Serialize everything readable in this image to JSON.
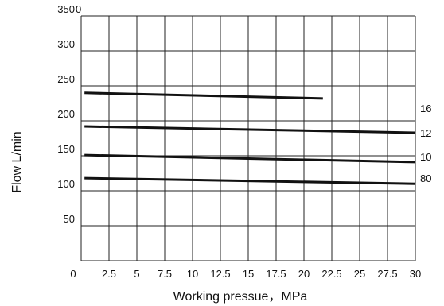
{
  "chart_data": {
    "type": "line",
    "xlabel": "Working pressue，MPa",
    "ylabel": "Flow L/min",
    "xlim": [
      0,
      30
    ],
    "ylim": [
      0,
      350
    ],
    "x_ticks": [
      "0",
      "2.5",
      "5",
      "7.5",
      "10",
      "12.5",
      "15",
      "17.5",
      "20",
      "22.5",
      "25",
      "27.5",
      "30"
    ],
    "y_ticks": [
      "50",
      "100",
      "150",
      "200",
      "250",
      "300",
      "350"
    ],
    "y_top_extra_label": "0",
    "grid": true,
    "series": [
      {
        "name": "16",
        "x": [
          0.3,
          21.7
        ],
        "y": [
          240,
          232
        ]
      },
      {
        "name": "12",
        "x": [
          0.3,
          30
        ],
        "y": [
          192,
          183
        ]
      },
      {
        "name": "10",
        "x": [
          0.3,
          30
        ],
        "y": [
          151,
          141
        ]
      },
      {
        "name": "80",
        "x": [
          0.3,
          30
        ],
        "y": [
          118,
          110
        ]
      }
    ]
  }
}
